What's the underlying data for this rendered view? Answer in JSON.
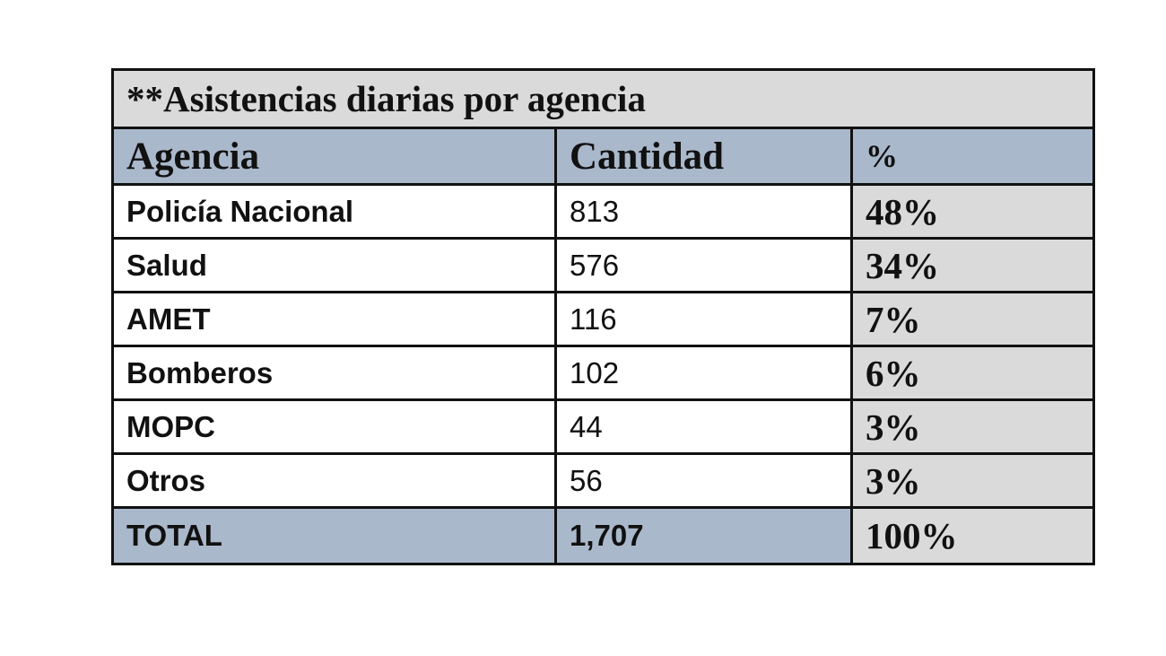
{
  "table": {
    "title": "**Asistencias diarias por agencia",
    "headers": [
      "Agencia",
      "Cantidad",
      "%"
    ],
    "rows": [
      {
        "agency": "Policía Nacional",
        "quantity": "813",
        "percent": "48%"
      },
      {
        "agency": "Salud",
        "quantity": "576",
        "percent": "34%"
      },
      {
        "agency": "AMET",
        "quantity": "116",
        "percent": "7%"
      },
      {
        "agency": "Bomberos",
        "quantity": "102",
        "percent": "6%"
      },
      {
        "agency": "MOPC",
        "quantity": "44",
        "percent": "3%"
      },
      {
        "agency": "Otros",
        "quantity": "56",
        "percent": "3%"
      }
    ],
    "total": {
      "label": "TOTAL",
      "quantity": "1,707",
      "percent": "100%"
    }
  },
  "colors": {
    "header_fill": "#aab8cb",
    "title_fill": "#dadada",
    "percent_fill": "#dadada",
    "border": "#111111"
  }
}
